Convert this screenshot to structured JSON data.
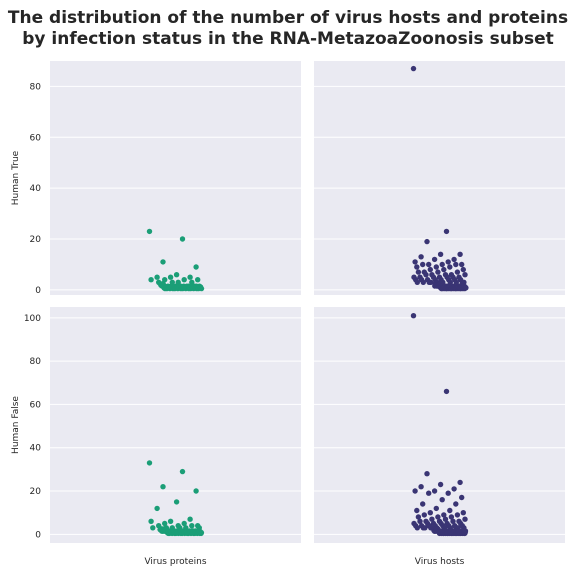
{
  "title_lines": [
    "The distribution of the number of virus hosts and proteins",
    "by infection status in the RNA-MetazoaZoonosis subset"
  ],
  "colors": {
    "background": "#eaeaf2",
    "grid": "#ffffff",
    "virus_proteins": "#1b9e77",
    "virus_hosts": "#3a3574"
  },
  "chart_data": [
    {
      "type": "scatter",
      "row_label": "Human True",
      "column_label": "",
      "ylim": [
        -2,
        90
      ],
      "yticks": [
        "0",
        "20",
        "40",
        "60",
        "80"
      ],
      "series": [
        {
          "values": [
            23,
            20,
            11,
            9,
            6,
            5,
            5,
            5,
            4,
            4,
            4,
            4,
            3,
            3,
            3,
            3,
            2,
            2,
            2,
            2,
            2,
            2,
            1,
            1,
            1,
            1,
            1,
            1,
            1,
            1,
            1,
            1,
            1,
            1,
            1,
            1,
            1,
            1,
            1,
            1,
            1,
            1,
            1,
            1,
            1,
            1,
            1,
            1,
            1,
            1,
            1,
            1,
            1,
            1,
            1,
            1,
            1,
            1,
            1,
            1,
            1,
            1,
            1,
            1,
            1,
            1,
            1,
            1,
            1,
            1,
            1,
            1,
            1,
            1,
            1,
            1,
            1,
            1,
            1,
            1
          ]
        }
      ]
    },
    {
      "type": "scatter",
      "row_label": "",
      "column_label": "",
      "ylim": [
        -2,
        90
      ],
      "yticks": [],
      "series": [
        {
          "values": [
            87,
            23,
            19,
            14,
            14,
            13,
            12,
            12,
            11,
            11,
            10,
            10,
            10,
            10,
            10,
            9,
            9,
            9,
            8,
            8,
            8,
            7,
            7,
            7,
            7,
            6,
            6,
            6,
            6,
            6,
            5,
            5,
            5,
            5,
            5,
            5,
            5,
            4,
            4,
            4,
            4,
            4,
            4,
            4,
            4,
            3,
            3,
            3,
            3,
            3,
            3,
            3,
            3,
            3,
            3,
            2,
            2,
            2,
            2,
            2,
            2,
            2,
            2,
            2,
            2,
            2,
            2,
            2,
            2,
            1,
            1,
            1,
            1,
            1,
            1,
            1,
            1,
            1,
            1,
            1,
            1,
            1,
            1,
            1,
            1,
            1,
            1,
            1,
            1,
            1,
            1,
            1,
            1,
            1,
            1,
            1,
            1,
            1,
            1,
            1,
            1,
            1,
            1,
            1,
            1,
            1,
            1,
            1,
            1,
            1,
            1,
            1,
            1,
            1,
            1,
            1,
            1,
            1,
            1,
            1,
            1,
            1,
            1,
            1,
            1,
            1,
            1,
            1,
            1,
            1,
            1,
            1,
            1,
            1,
            1
          ]
        }
      ]
    },
    {
      "type": "scatter",
      "row_label": "Human False",
      "column_label": "Virus proteins",
      "ylim": [
        -4,
        105
      ],
      "yticks": [
        "0",
        "20",
        "40",
        "60",
        "80",
        "100"
      ],
      "series": [
        {
          "values": [
            33,
            29,
            22,
            20,
            15,
            12,
            7,
            6,
            6,
            5,
            5,
            4,
            4,
            4,
            4,
            3,
            3,
            3,
            3,
            3,
            3,
            2,
            2,
            2,
            2,
            2,
            2,
            2,
            2,
            2,
            2,
            2,
            2,
            1,
            1,
            1,
            1,
            1,
            1,
            1,
            1,
            1,
            1,
            1,
            1,
            1,
            1,
            1,
            1,
            1,
            1,
            1,
            1,
            1,
            1,
            1,
            1,
            1,
            1,
            1,
            1,
            1,
            1,
            1,
            1,
            1,
            1,
            1,
            1,
            1,
            1,
            1,
            1,
            1,
            1,
            1,
            1,
            1,
            1,
            1,
            1,
            1,
            1,
            1,
            1,
            1,
            1,
            1,
            1,
            1,
            1,
            1,
            1,
            1,
            1,
            1,
            1,
            1,
            1,
            1
          ]
        }
      ]
    },
    {
      "type": "scatter",
      "row_label": "",
      "column_label": "Virus hosts",
      "ylim": [
        -4,
        105
      ],
      "yticks": [],
      "series": [
        {
          "values": [
            101,
            66,
            28,
            24,
            23,
            22,
            21,
            20,
            20,
            19,
            19,
            17,
            16,
            14,
            14,
            12,
            11,
            11,
            10,
            10,
            9,
            9,
            9,
            8,
            8,
            8,
            7,
            7,
            7,
            6,
            6,
            6,
            6,
            6,
            5,
            5,
            5,
            5,
            5,
            5,
            4,
            4,
            4,
            4,
            4,
            4,
            4,
            4,
            3,
            3,
            3,
            3,
            3,
            3,
            3,
            3,
            3,
            3,
            2,
            2,
            2,
            2,
            2,
            2,
            2,
            2,
            2,
            2,
            2,
            2,
            2,
            2,
            1,
            1,
            1,
            1,
            1,
            1,
            1,
            1,
            1,
            1,
            1,
            1,
            1,
            1,
            1,
            1,
            1,
            1,
            1,
            1,
            1,
            1,
            1,
            1,
            1,
            1,
            1,
            1,
            1,
            1,
            1,
            1,
            1,
            1,
            1,
            1,
            1,
            1,
            1,
            1,
            1,
            1,
            1,
            1,
            1,
            1,
            1,
            1,
            1,
            1,
            1,
            1,
            1,
            1,
            1,
            1,
            1,
            1,
            1,
            1,
            1,
            1,
            1,
            1,
            1,
            1,
            1,
            1,
            1,
            1,
            1,
            1,
            1,
            1,
            1,
            1,
            1
          ]
        }
      ]
    }
  ]
}
